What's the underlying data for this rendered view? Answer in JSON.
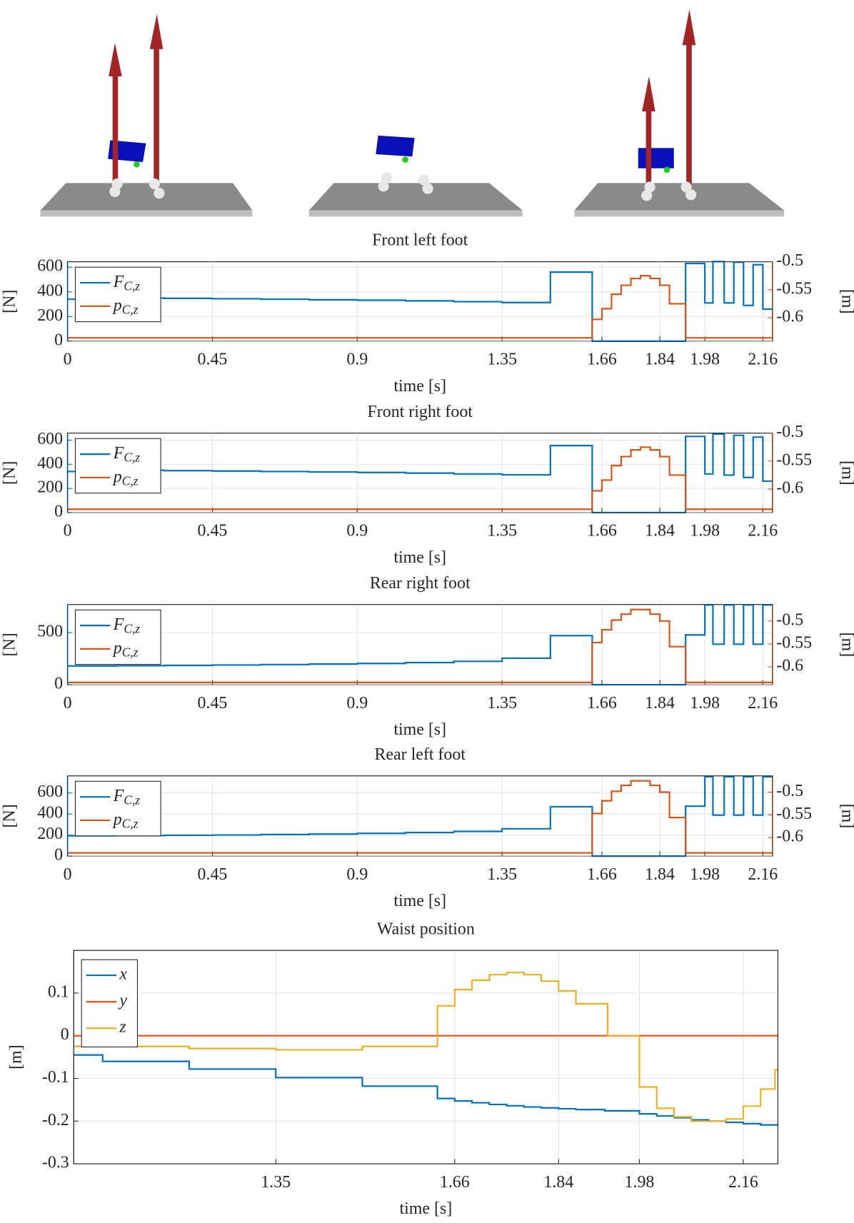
{
  "chart_data": [
    {
      "type": "line",
      "drawstyle": "steps-post",
      "title": "Front left foot",
      "xlabel": "time [s]",
      "ylabel": "[N]",
      "y2label": "[m]",
      "xlim": [
        0,
        2.19
      ],
      "xticks": [
        0,
        0.45,
        0.9,
        1.35,
        1.66,
        1.84,
        1.98,
        2.16
      ],
      "ylim": [
        0,
        644
      ],
      "yticks": [
        0,
        200,
        400,
        600
      ],
      "y2lim": [
        -0.642,
        -0.5
      ],
      "y2ticks": [
        -0.5,
        -0.55,
        -0.6
      ],
      "grid": true,
      "legend": "upper left",
      "series": [
        {
          "name": "FC,z",
          "color": "#0072bd",
          "x": [
            0,
            0.15,
            0.3,
            0.45,
            0.6,
            0.75,
            0.9,
            1.05,
            1.2,
            1.35,
            1.5,
            1.63,
            1.92,
            1.98,
            2.005,
            2.04,
            2.07,
            2.1,
            2.13,
            2.16
          ],
          "values": [
            340,
            350,
            347,
            344,
            340,
            336,
            332,
            327,
            320,
            313,
            560,
            0,
            630,
            310,
            645,
            310,
            640,
            290,
            620,
            260
          ]
        },
        {
          "name": "pC,z",
          "color": "#d95319",
          "axis": "y2",
          "x": [
            0,
            1.63,
            1.66,
            1.69,
            1.72,
            1.75,
            1.78,
            1.81,
            1.84,
            1.87,
            1.92
          ],
          "values": [
            -0.636,
            -0.603,
            -0.584,
            -0.558,
            -0.542,
            -0.53,
            -0.525,
            -0.53,
            -0.542,
            -0.575,
            -0.636
          ]
        }
      ]
    },
    {
      "type": "line",
      "drawstyle": "steps-post",
      "title": "Front right foot",
      "xlabel": "time [s]",
      "ylabel": "[N]",
      "y2label": "[m]",
      "xlim": [
        0,
        2.19
      ],
      "xticks": [
        0,
        0.45,
        0.9,
        1.35,
        1.66,
        1.84,
        1.98,
        2.16
      ],
      "ylim": [
        0,
        658
      ],
      "yticks": [
        0,
        200,
        400,
        600
      ],
      "y2lim": [
        -0.642,
        -0.5
      ],
      "y2ticks": [
        -0.5,
        -0.55,
        -0.6
      ],
      "grid": true,
      "legend": "upper left",
      "series": [
        {
          "name": "FC,z",
          "color": "#0072bd",
          "x": [
            0,
            0.15,
            0.3,
            0.45,
            0.6,
            0.75,
            0.9,
            1.05,
            1.2,
            1.35,
            1.5,
            1.63,
            1.92,
            1.98,
            2.005,
            2.04,
            2.07,
            2.1,
            2.13,
            2.16
          ],
          "values": [
            340,
            350,
            347,
            344,
            340,
            336,
            332,
            327,
            320,
            313,
            555,
            0,
            630,
            320,
            650,
            310,
            640,
            290,
            625,
            260
          ]
        },
        {
          "name": "pC,z",
          "color": "#d95319",
          "axis": "y2",
          "x": [
            0,
            1.63,
            1.66,
            1.69,
            1.72,
            1.75,
            1.78,
            1.81,
            1.84,
            1.87,
            1.92
          ],
          "values": [
            -0.636,
            -0.603,
            -0.584,
            -0.558,
            -0.542,
            -0.53,
            -0.525,
            -0.53,
            -0.542,
            -0.575,
            -0.636
          ]
        }
      ]
    },
    {
      "type": "line",
      "drawstyle": "steps-post",
      "title": "Rear right foot",
      "xlabel": "time [s]",
      "ylabel": "[N]",
      "y2label": "[m]",
      "xlim": [
        0,
        2.19
      ],
      "xticks": [
        0,
        0.45,
        0.9,
        1.35,
        1.66,
        1.84,
        1.98,
        2.16
      ],
      "ylim": [
        0,
        769
      ],
      "yticks": [
        0,
        500
      ],
      "y2lim": [
        -0.639,
        -0.464
      ],
      "y2ticks": [
        -0.5,
        -0.55,
        -0.6
      ],
      "grid": true,
      "legend": "upper left",
      "series": [
        {
          "name": "FC,z",
          "color": "#0072bd",
          "x": [
            0,
            0.15,
            0.3,
            0.45,
            0.6,
            0.75,
            0.9,
            1.05,
            1.2,
            1.35,
            1.5,
            1.63,
            1.92,
            1.98,
            2.005,
            2.04,
            2.07,
            2.1,
            2.13,
            2.16
          ],
          "values": [
            180,
            182,
            185,
            189,
            193,
            198,
            204,
            212,
            224,
            254,
            470,
            0,
            478,
            765,
            388,
            765,
            388,
            765,
            388,
            765
          ]
        },
        {
          "name": "pC,z",
          "color": "#d95319",
          "axis": "y2",
          "x": [
            0,
            1.63,
            1.66,
            1.69,
            1.72,
            1.75,
            1.78,
            1.81,
            1.84,
            1.87,
            1.92
          ],
          "values": [
            -0.634,
            -0.547,
            -0.519,
            -0.498,
            -0.485,
            -0.475,
            -0.475,
            -0.485,
            -0.5,
            -0.556,
            -0.634
          ]
        }
      ]
    },
    {
      "type": "line",
      "drawstyle": "steps-post",
      "title": "Rear left foot",
      "xlabel": "time [s]",
      "ylabel": "[N]",
      "y2label": "[m]",
      "xlim": [
        0,
        2.19
      ],
      "xticks": [
        0,
        0.45,
        0.9,
        1.35,
        1.66,
        1.84,
        1.98,
        2.16
      ],
      "ylim": [
        0,
        763
      ],
      "yticks": [
        0,
        200,
        400,
        600
      ],
      "y2lim": [
        -0.641,
        -0.464
      ],
      "y2ticks": [
        -0.5,
        -0.55,
        -0.6
      ],
      "grid": true,
      "legend": "upper left",
      "series": [
        {
          "name": "FC,z",
          "color": "#0072bd",
          "x": [
            0,
            0.15,
            0.3,
            0.45,
            0.6,
            0.75,
            0.9,
            1.05,
            1.2,
            1.35,
            1.5,
            1.63,
            1.92,
            1.98,
            2.005,
            2.04,
            2.07,
            2.1,
            2.13,
            2.16
          ],
          "values": [
            193,
            195,
            198,
            201,
            205,
            210,
            216,
            224,
            235,
            260,
            470,
            0,
            475,
            755,
            390,
            755,
            390,
            755,
            390,
            755
          ]
        },
        {
          "name": "pC,z",
          "color": "#d95319",
          "axis": "y2",
          "x": [
            0,
            1.63,
            1.66,
            1.69,
            1.72,
            1.75,
            1.78,
            1.81,
            1.84,
            1.87,
            1.92
          ],
          "values": [
            -0.634,
            -0.547,
            -0.519,
            -0.498,
            -0.485,
            -0.475,
            -0.475,
            -0.485,
            -0.5,
            -0.556,
            -0.634
          ]
        }
      ]
    },
    {
      "type": "line",
      "drawstyle": "steps-post",
      "title": "Waist position",
      "xlabel": "time [s]",
      "ylabel": "[m]",
      "xlim": [
        1.0,
        2.22
      ],
      "xticks": [
        1.35,
        1.66,
        1.84,
        1.98,
        2.16
      ],
      "ylim": [
        -0.3,
        0.2
      ],
      "yticks": [
        -0.3,
        -0.2,
        -0.1,
        0,
        0.1
      ],
      "grid": true,
      "legend": "upper left",
      "series": [
        {
          "name": "x",
          "color": "#0072bd",
          "x": [
            1.0,
            1.05,
            1.2,
            1.35,
            1.5,
            1.63,
            1.66,
            1.69,
            1.72,
            1.75,
            1.78,
            1.81,
            1.84,
            1.87,
            1.92,
            1.98,
            2.01,
            2.04,
            2.07,
            2.1,
            2.13,
            2.16,
            2.19
          ],
          "values": [
            -0.045,
            -0.06,
            -0.078,
            -0.098,
            -0.118,
            -0.147,
            -0.153,
            -0.157,
            -0.161,
            -0.164,
            -0.167,
            -0.169,
            -0.171,
            -0.173,
            -0.176,
            -0.183,
            -0.188,
            -0.192,
            -0.197,
            -0.2,
            -0.203,
            -0.206,
            -0.209
          ]
        },
        {
          "name": "y",
          "color": "#d95319",
          "x": [
            1.0
          ],
          "values": [
            0
          ]
        },
        {
          "name": "z",
          "color": "#edb120",
          "x": [
            1.0,
            1.2,
            1.35,
            1.5,
            1.63,
            1.66,
            1.69,
            1.72,
            1.75,
            1.78,
            1.81,
            1.84,
            1.87,
            1.925,
            1.98,
            2.01,
            2.04,
            2.07,
            2.1,
            2.13,
            2.16,
            2.19,
            2.215
          ],
          "values": [
            -0.025,
            -0.03,
            -0.033,
            -0.025,
            0.07,
            0.108,
            0.13,
            0.143,
            0.148,
            0.143,
            0.128,
            0.105,
            0.075,
            0,
            -0.12,
            -0.17,
            -0.19,
            -0.2,
            -0.2,
            -0.195,
            -0.165,
            -0.125,
            -0.08
          ]
        }
      ]
    }
  ]
}
